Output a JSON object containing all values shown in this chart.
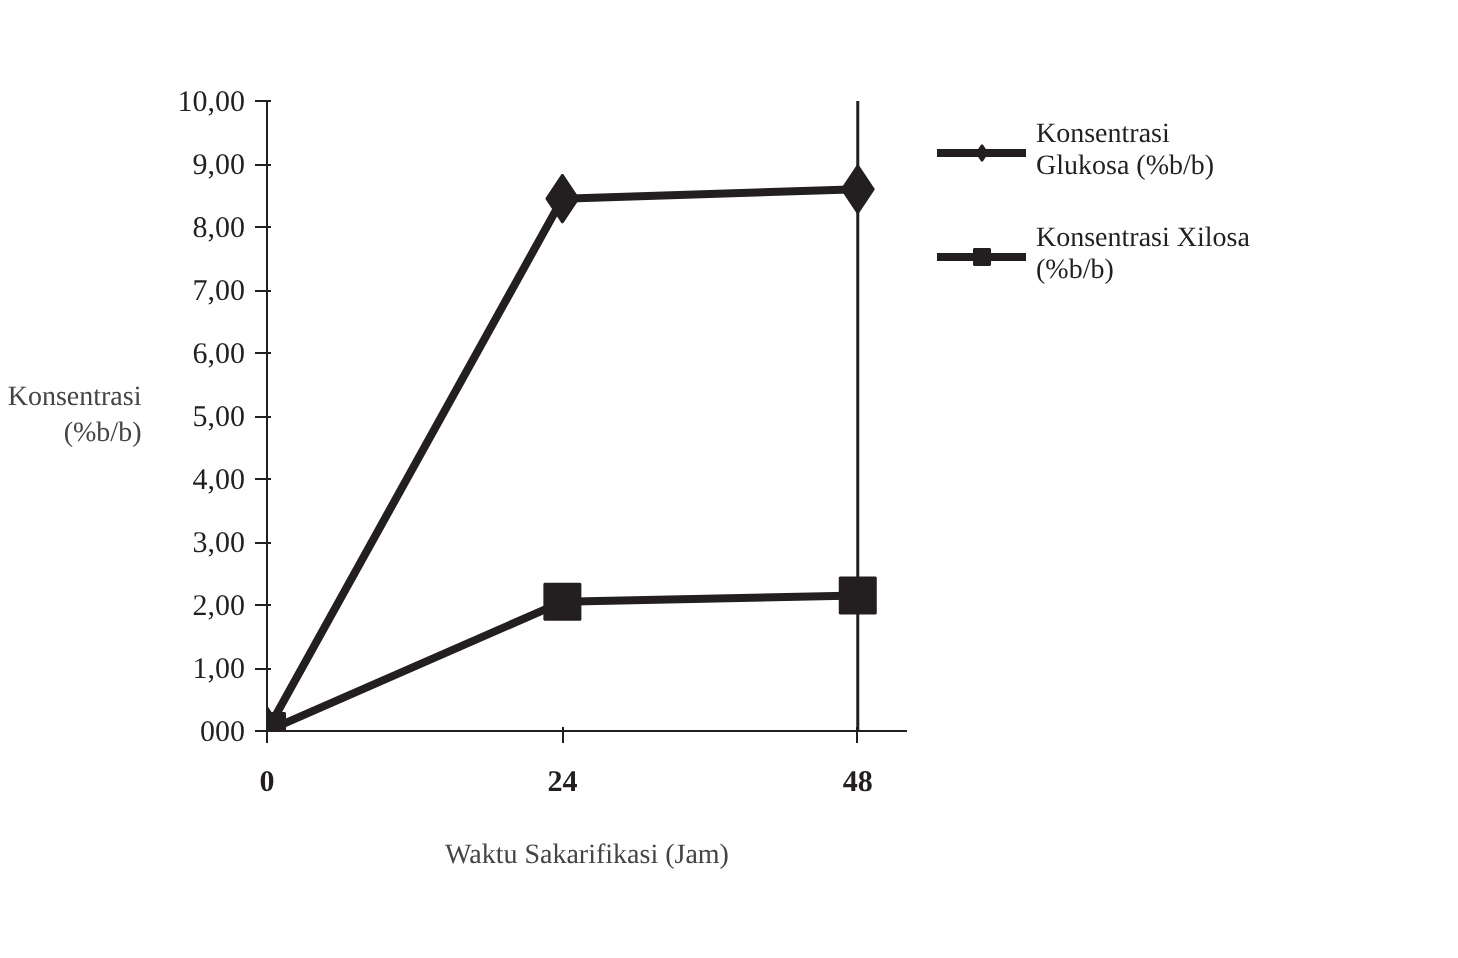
{
  "chart_data": {
    "type": "line",
    "xlabel": "Waktu Sakarifikasi (Jam)",
    "ylabel": "Konsentrasi (%b/b)",
    "x": [
      0,
      24,
      48
    ],
    "xlim": [
      0,
      52
    ],
    "xticks": [
      0,
      24,
      48
    ],
    "ylim": [
      0,
      10
    ],
    "yticks": [
      {
        "value": 0,
        "label": "000"
      },
      {
        "value": 1,
        "label": "1,00"
      },
      {
        "value": 2,
        "label": "2,00"
      },
      {
        "value": 3,
        "label": "3,00"
      },
      {
        "value": 4,
        "label": "4,00"
      },
      {
        "value": 5,
        "label": "5,00"
      },
      {
        "value": 6,
        "label": "6,00"
      },
      {
        "value": 7,
        "label": "7,00"
      },
      {
        "value": 8,
        "label": "8,00"
      },
      {
        "value": 9,
        "label": "9,00"
      },
      {
        "value": 10,
        "label": "10,00"
      }
    ],
    "series": [
      {
        "name": "Konsentrasi Glukosa (%b/b)",
        "color": "#231f20",
        "values": [
          0,
          8.45,
          8.6
        ],
        "marker": "diamond"
      },
      {
        "name": "Konsentrasi Xilosa (%b/b)",
        "color": "#231f20",
        "values": [
          0,
          2.05,
          2.15
        ],
        "marker": "square"
      }
    ],
    "ref_lines": [
      {
        "axis": "x",
        "value": 48,
        "color": "#231f20"
      }
    ],
    "grid": false,
    "legend": "right",
    "line_style": "solid"
  }
}
